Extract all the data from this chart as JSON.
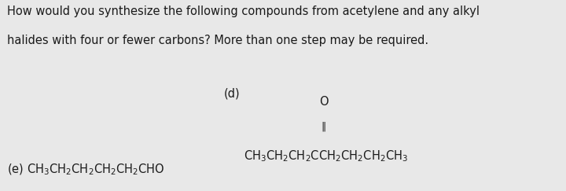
{
  "background_color": "#e8e8e8",
  "title_text_line1": "How would you synthesize the following compounds from acetylene and any alkyl",
  "title_text_line2": "halides with four or fewer carbons? More than one step may be required.",
  "label_d": "(d)",
  "label_e": "(e)",
  "formula_e": "CH$_3$CH$_2$CH$_2$CH$_2$CH$_2$CHO",
  "text_color": "#1a1a1a",
  "fig_width": 7.2,
  "fig_height": 2.43,
  "dpi": 100
}
